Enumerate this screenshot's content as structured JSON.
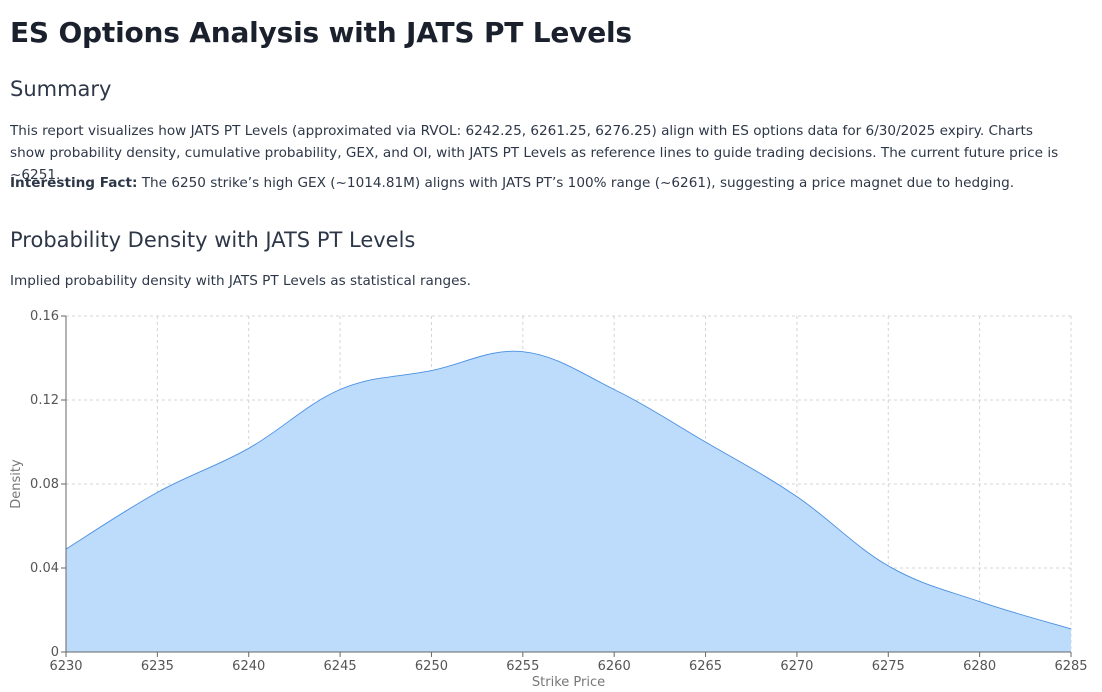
{
  "page": {
    "title": "ES Options Analysis with JATS PT Levels"
  },
  "summary": {
    "heading": "Summary",
    "text": "This report visualizes how JATS PT Levels (approximated via RVOL: 6242.25, 6261.25, 6276.25) align with ES options data for 6/30/2025 expiry. Charts show probability density, cumulative probability, GEX, and OI, with JATS PT Levels as reference lines to guide trading decisions. The current future price is ~6251.",
    "fact_label": "Interesting Fact:",
    "fact_text": " The 6250 strike’s high GEX (~1014.81M) aligns with JATS PT’s 100% range (~6261), suggesting a price magnet due to hedging."
  },
  "density_section": {
    "heading": "Probability Density with JATS PT Levels",
    "description": "Implied probability density with JATS PT Levels as statistical ranges."
  },
  "colors": {
    "area_fill": "#bddcfc",
    "area_stroke": "#4a90e2",
    "grid": "#d4d4d4",
    "axis": "#666666"
  },
  "chart_data": {
    "type": "area",
    "x": [
      6230,
      6235,
      6240,
      6245,
      6250,
      6255,
      6260,
      6265,
      6270,
      6275,
      6280,
      6285
    ],
    "series": [
      {
        "values": [
          0.049,
          0.076,
          0.097,
          0.125,
          0.134,
          0.143,
          0.125,
          0.1,
          0.074,
          0.041,
          0.024,
          0.011
        ]
      }
    ],
    "xlabel": "Strike Price",
    "ylabel": "Density",
    "xlim": [
      6230,
      6285
    ],
    "ylim": [
      0,
      0.16
    ],
    "x_ticks": [
      "6230",
      "6235",
      "6240",
      "6245",
      "6250",
      "6255",
      "6260",
      "6265",
      "6270",
      "6275",
      "6280",
      "6285"
    ],
    "y_ticks": [
      "0",
      "0.04",
      "0.08",
      "0.12",
      "0.16"
    ],
    "grid": true
  }
}
